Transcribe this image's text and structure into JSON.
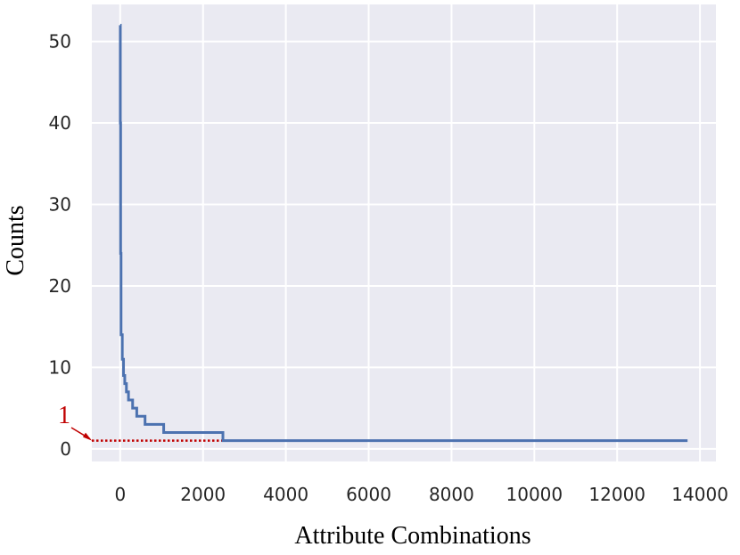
{
  "chart_data": {
    "type": "line",
    "x_label": "Attribute Combinations",
    "y_label": "Counts",
    "x": [
      0,
      3,
      3,
      10,
      10,
      20,
      20,
      50,
      50,
      80,
      80,
      110,
      110,
      150,
      150,
      200,
      200,
      300,
      300,
      400,
      400,
      600,
      600,
      1050,
      1050,
      2480,
      2480,
      13700
    ],
    "series": [
      {
        "color": "#4c72b0",
        "values": [
          52,
          52,
          40,
          40,
          24,
          24,
          14,
          14,
          11,
          11,
          9,
          9,
          8,
          8,
          7,
          7,
          6,
          6,
          5,
          5,
          4,
          4,
          3,
          3,
          2,
          2,
          1,
          1
        ]
      }
    ],
    "xlim": [
      -685,
      14385
    ],
    "ylim": [
      -1.55,
      54.55
    ],
    "xticks": [
      0,
      2000,
      4000,
      6000,
      8000,
      10000,
      12000,
      14000
    ],
    "yticks": [
      0,
      10,
      20,
      30,
      40,
      50
    ],
    "grid": true,
    "annotation": {
      "text": "1",
      "y": 1,
      "x_end": 2450,
      "color": "#c00000"
    }
  }
}
